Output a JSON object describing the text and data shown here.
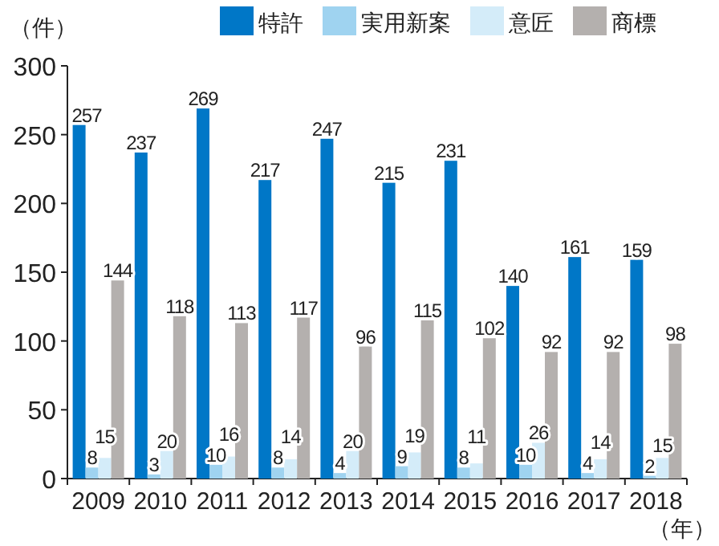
{
  "chart_data": {
    "type": "bar",
    "ylabel": "（件）",
    "xlabel": "（年）",
    "categories": [
      "2009",
      "2010",
      "2011",
      "2012",
      "2013",
      "2014",
      "2015",
      "2016",
      "2017",
      "2018"
    ],
    "series": [
      {
        "name": "特許",
        "color": "#0077c7",
        "values": [
          257,
          237,
          269,
          217,
          247,
          215,
          231,
          140,
          161,
          159
        ]
      },
      {
        "name": "実用新案",
        "color": "#9fd3f0",
        "values": [
          8,
          3,
          10,
          8,
          4,
          9,
          8,
          10,
          4,
          2
        ]
      },
      {
        "name": "意匠",
        "color": "#d4ecf9",
        "values": [
          15,
          20,
          16,
          14,
          20,
          19,
          11,
          26,
          14,
          15
        ]
      },
      {
        "name": "商標",
        "color": "#b4b0ae",
        "values": [
          144,
          118,
          113,
          117,
          96,
          115,
          102,
          92,
          92,
          98
        ]
      }
    ],
    "ylim": [
      0,
      300
    ],
    "yticks": [
      0,
      50,
      100,
      150,
      200,
      250,
      300
    ],
    "legend": "top",
    "data_labels": true,
    "grid": false
  }
}
